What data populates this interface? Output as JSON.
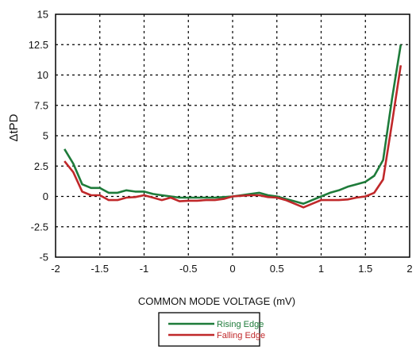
{
  "chart_data": {
    "type": "line",
    "xlabel": "COMMON MODE VOLTAGE (mV)",
    "ylabel": "ΔtPD",
    "xlim": [
      -2,
      2
    ],
    "ylim": [
      -5,
      15
    ],
    "xticks": [
      -2,
      -1.5,
      -1,
      -0.5,
      0,
      0.5,
      1,
      1.5,
      2
    ],
    "yticks": [
      -5,
      -2.5,
      0,
      2.5,
      5,
      7.5,
      10,
      12.5,
      15
    ],
    "xtick_labels": [
      "-2",
      "-1.5",
      "-1",
      "-0.5",
      "0",
      "0.5",
      "1",
      "1.5",
      "2"
    ],
    "ytick_labels": [
      "-5",
      "-2.5",
      "0",
      "2.5",
      "5",
      "7.5",
      "10",
      "12.5",
      "15"
    ],
    "grid": true,
    "legend": "bottom-center",
    "series": [
      {
        "name": "Rising Edge",
        "color": "#1e7b3a",
        "x": [
          -1.9,
          -1.8,
          -1.7,
          -1.6,
          -1.5,
          -1.4,
          -1.3,
          -1.2,
          -1.1,
          -1.0,
          -0.9,
          -0.8,
          -0.7,
          -0.6,
          -0.5,
          -0.4,
          -0.3,
          -0.2,
          -0.1,
          0.0,
          0.1,
          0.2,
          0.3,
          0.4,
          0.5,
          0.6,
          0.7,
          0.8,
          0.9,
          1.0,
          1.1,
          1.2,
          1.3,
          1.4,
          1.5,
          1.6,
          1.7,
          1.8,
          1.9
        ],
        "values": [
          3.9,
          2.7,
          1.0,
          0.7,
          0.7,
          0.3,
          0.3,
          0.5,
          0.4,
          0.4,
          0.2,
          0.1,
          0.0,
          -0.1,
          -0.1,
          -0.1,
          -0.1,
          -0.1,
          -0.05,
          0.0,
          0.1,
          0.2,
          0.3,
          0.1,
          0.0,
          -0.2,
          -0.4,
          -0.6,
          -0.3,
          0.0,
          0.3,
          0.5,
          0.8,
          1.0,
          1.2,
          1.7,
          3.0,
          8.0,
          12.5
        ]
      },
      {
        "name": "Falling Edge",
        "color": "#c0282a",
        "x": [
          -1.9,
          -1.8,
          -1.7,
          -1.6,
          -1.5,
          -1.4,
          -1.3,
          -1.2,
          -1.1,
          -1.0,
          -0.9,
          -0.8,
          -0.7,
          -0.6,
          -0.5,
          -0.4,
          -0.3,
          -0.2,
          -0.1,
          0.0,
          0.1,
          0.2,
          0.3,
          0.4,
          0.5,
          0.6,
          0.7,
          0.8,
          0.9,
          1.0,
          1.1,
          1.2,
          1.3,
          1.4,
          1.5,
          1.6,
          1.7,
          1.8,
          1.9
        ],
        "values": [
          2.9,
          2.0,
          0.4,
          0.1,
          0.1,
          -0.3,
          -0.3,
          -0.1,
          -0.05,
          0.1,
          -0.1,
          -0.3,
          -0.1,
          -0.4,
          -0.35,
          -0.35,
          -0.3,
          -0.3,
          -0.2,
          0.0,
          0.05,
          0.1,
          0.1,
          -0.05,
          -0.1,
          -0.3,
          -0.6,
          -0.9,
          -0.6,
          -0.3,
          -0.3,
          -0.3,
          -0.25,
          -0.1,
          0.0,
          0.3,
          1.4,
          6.0,
          10.8
        ]
      }
    ]
  }
}
